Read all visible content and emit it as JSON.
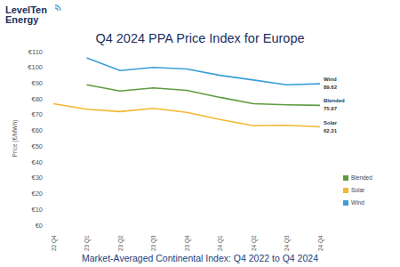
{
  "logo": [
    "LevelTen",
    "Energy"
  ],
  "chart_data": {
    "type": "line",
    "title": "Q4 2024 PPA Price Index for Europe",
    "subtitle": "Market-Averaged Continental Index: Q4 2022 to Q4 2024",
    "y_label": "Price (€/MWh)",
    "categories": [
      "22 Q4",
      "23 Q1",
      "23 Q2",
      "23 Q3",
      "23 Q4",
      "24 Q1",
      "24 Q2",
      "24 Q3",
      "24 Q4"
    ],
    "series": [
      {
        "name": "Blended",
        "color": "#5e9c3f",
        "values": [
          null,
          89,
          85,
          87,
          85.5,
          81,
          77,
          76.3,
          75.97
        ]
      },
      {
        "name": "Solar",
        "color": "#f2b830",
        "values": [
          77,
          73.5,
          72,
          74,
          71.5,
          67,
          63,
          63.3,
          62.31
        ]
      },
      {
        "name": "Wind",
        "color": "#3a9fd8",
        "values": [
          null,
          106,
          98,
          100,
          99,
          95,
          92,
          89,
          89.62
        ]
      }
    ],
    "ylim": [
      0,
      110
    ],
    "yticks": [
      {
        "value": 0,
        "label": "€0"
      },
      {
        "value": 10,
        "label": "€10"
      },
      {
        "value": 20,
        "label": "€20"
      },
      {
        "value": 30,
        "label": "€30"
      },
      {
        "value": 40,
        "label": "€40"
      },
      {
        "value": 50,
        "label": "€50"
      },
      {
        "value": 60,
        "label": "€60"
      },
      {
        "value": 70,
        "label": "€70"
      },
      {
        "value": 80,
        "label": "€80"
      },
      {
        "value": 90,
        "label": "€90"
      },
      {
        "value": 100,
        "label": "€100"
      },
      {
        "value": 110,
        "label": "€110"
      }
    ],
    "grid": false,
    "legend": "right"
  }
}
